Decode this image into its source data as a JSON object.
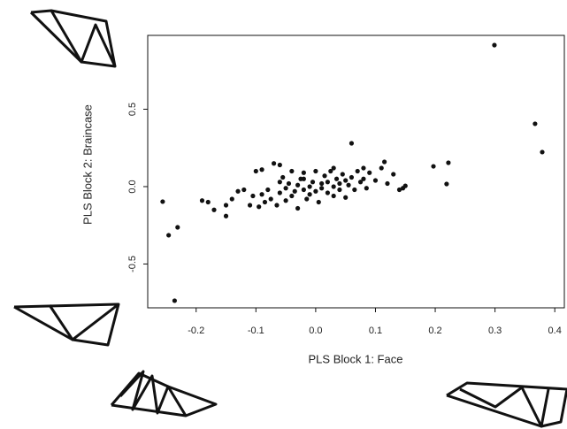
{
  "chart_data": {
    "type": "scatter",
    "x_label": "PLS Block 1: Face",
    "y_label": "PLS Block 2: Braincase",
    "color": "#111111",
    "xlim": [
      -0.281,
      0.416
    ],
    "ylim": [
      -0.783,
      0.977
    ],
    "xticks": [
      -0.2,
      -0.1,
      {
        "value": 0,
        "label": "0.0"
      },
      0.1,
      0.2,
      0.3,
      0.4
    ],
    "yticks": [
      -0.5,
      {
        "value": 0,
        "label": "0.0"
      },
      0.5
    ],
    "x": [
      0.299,
      0.367,
      0.379,
      -0.236,
      -0.256,
      -0.246,
      -0.231,
      0.222,
      0.219,
      0.197,
      -0.19,
      -0.18,
      -0.17,
      -0.15,
      -0.15,
      -0.14,
      -0.13,
      -0.11,
      -0.105,
      -0.1,
      -0.09,
      -0.095,
      -0.09,
      -0.085,
      -0.08,
      -0.075,
      -0.07,
      -0.065,
      -0.06,
      -0.06,
      -0.055,
      -0.05,
      -0.05,
      -0.045,
      -0.04,
      -0.04,
      -0.035,
      -0.03,
      -0.03,
      -0.025,
      -0.02,
      -0.02,
      -0.015,
      -0.01,
      -0.01,
      -0.005,
      0.0,
      0.0,
      0.005,
      0.01,
      0.01,
      0.015,
      0.02,
      0.02,
      0.025,
      0.03,
      0.03,
      0.035,
      0.04,
      0.04,
      0.045,
      0.05,
      0.05,
      0.055,
      0.06,
      0.06,
      0.065,
      0.07,
      0.075,
      0.08,
      0.085,
      0.09,
      0.1,
      0.11,
      0.115,
      0.12,
      0.13,
      0.14,
      0.146,
      0.15,
      0.08,
      -0.02,
      0.03,
      -0.06,
      -0.12
    ],
    "y": [
      0.914,
      0.406,
      0.223,
      -0.737,
      -0.097,
      -0.314,
      -0.263,
      0.154,
      0.017,
      0.131,
      -0.09,
      -0.1,
      -0.15,
      -0.12,
      -0.19,
      -0.08,
      -0.03,
      -0.12,
      -0.06,
      0.1,
      0.11,
      -0.13,
      -0.05,
      -0.1,
      -0.02,
      -0.08,
      0.15,
      -0.12,
      0.14,
      -0.04,
      0.06,
      -0.01,
      -0.09,
      0.02,
      -0.06,
      0.1,
      -0.03,
      0.01,
      -0.14,
      0.05,
      -0.02,
      0.09,
      -0.08,
      0.0,
      -0.05,
      0.03,
      -0.03,
      0.1,
      -0.1,
      0.02,
      -0.01,
      0.07,
      -0.04,
      0.03,
      0.1,
      0.0,
      -0.06,
      0.05,
      0.02,
      -0.02,
      0.08,
      0.04,
      -0.07,
      0.01,
      0.28,
      0.06,
      -0.02,
      0.1,
      0.03,
      0.05,
      -0.01,
      0.09,
      0.04,
      0.12,
      0.16,
      0.02,
      0.08,
      -0.02,
      -0.01,
      0.005,
      0.12,
      0.05,
      0.12,
      0.03,
      -0.02
    ]
  }
}
